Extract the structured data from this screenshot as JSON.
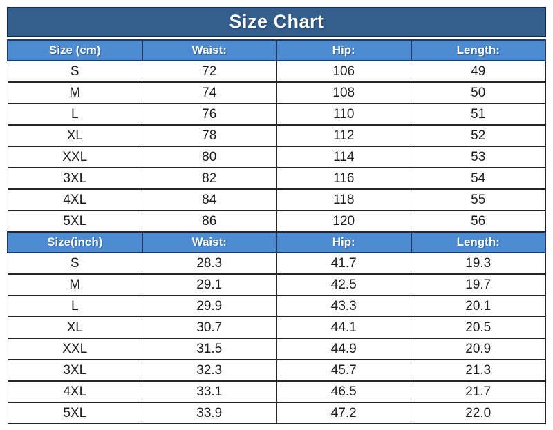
{
  "chart_data": {
    "type": "table",
    "title": "Size Chart",
    "sections": [
      {
        "id": "cm",
        "columns": [
          "Size (cm)",
          "Waist:",
          "Hip:",
          "Length:"
        ],
        "rows": [
          [
            "S",
            "72",
            "106",
            "49"
          ],
          [
            "M",
            "74",
            "108",
            "50"
          ],
          [
            "L",
            "76",
            "110",
            "51"
          ],
          [
            "XL",
            "78",
            "112",
            "52"
          ],
          [
            "XXL",
            "80",
            "114",
            "53"
          ],
          [
            "3XL",
            "82",
            "116",
            "54"
          ],
          [
            "4XL",
            "84",
            "118",
            "55"
          ],
          [
            "5XL",
            "86",
            "120",
            "56"
          ]
        ]
      },
      {
        "id": "inch",
        "columns": [
          "Size(inch)",
          "Waist:",
          "Hip:",
          "Length:"
        ],
        "rows": [
          [
            "S",
            "28.3",
            "41.7",
            "19.3"
          ],
          [
            "M",
            "29.1",
            "42.5",
            "19.7"
          ],
          [
            "L",
            "29.9",
            "43.3",
            "20.1"
          ],
          [
            "XL",
            "30.7",
            "44.1",
            "20.5"
          ],
          [
            "XXL",
            "31.5",
            "44.9",
            "20.9"
          ],
          [
            "3XL",
            "32.3",
            "45.7",
            "21.3"
          ],
          [
            "4XL",
            "33.1",
            "46.5",
            "21.7"
          ],
          [
            "5XL",
            "33.9",
            "47.2",
            "22.0"
          ]
        ]
      }
    ],
    "layout_hints": {
      "columns_equal_width": true,
      "grid": "on"
    }
  },
  "colors": {
    "title_background": "#345e8c",
    "header_background": "#4d8bd3",
    "header_border": "#1f3864",
    "header_text": "#ffffff",
    "cell_border": "#262626",
    "cell_text": "#1c1c1c",
    "page_background": "#ffffff"
  }
}
